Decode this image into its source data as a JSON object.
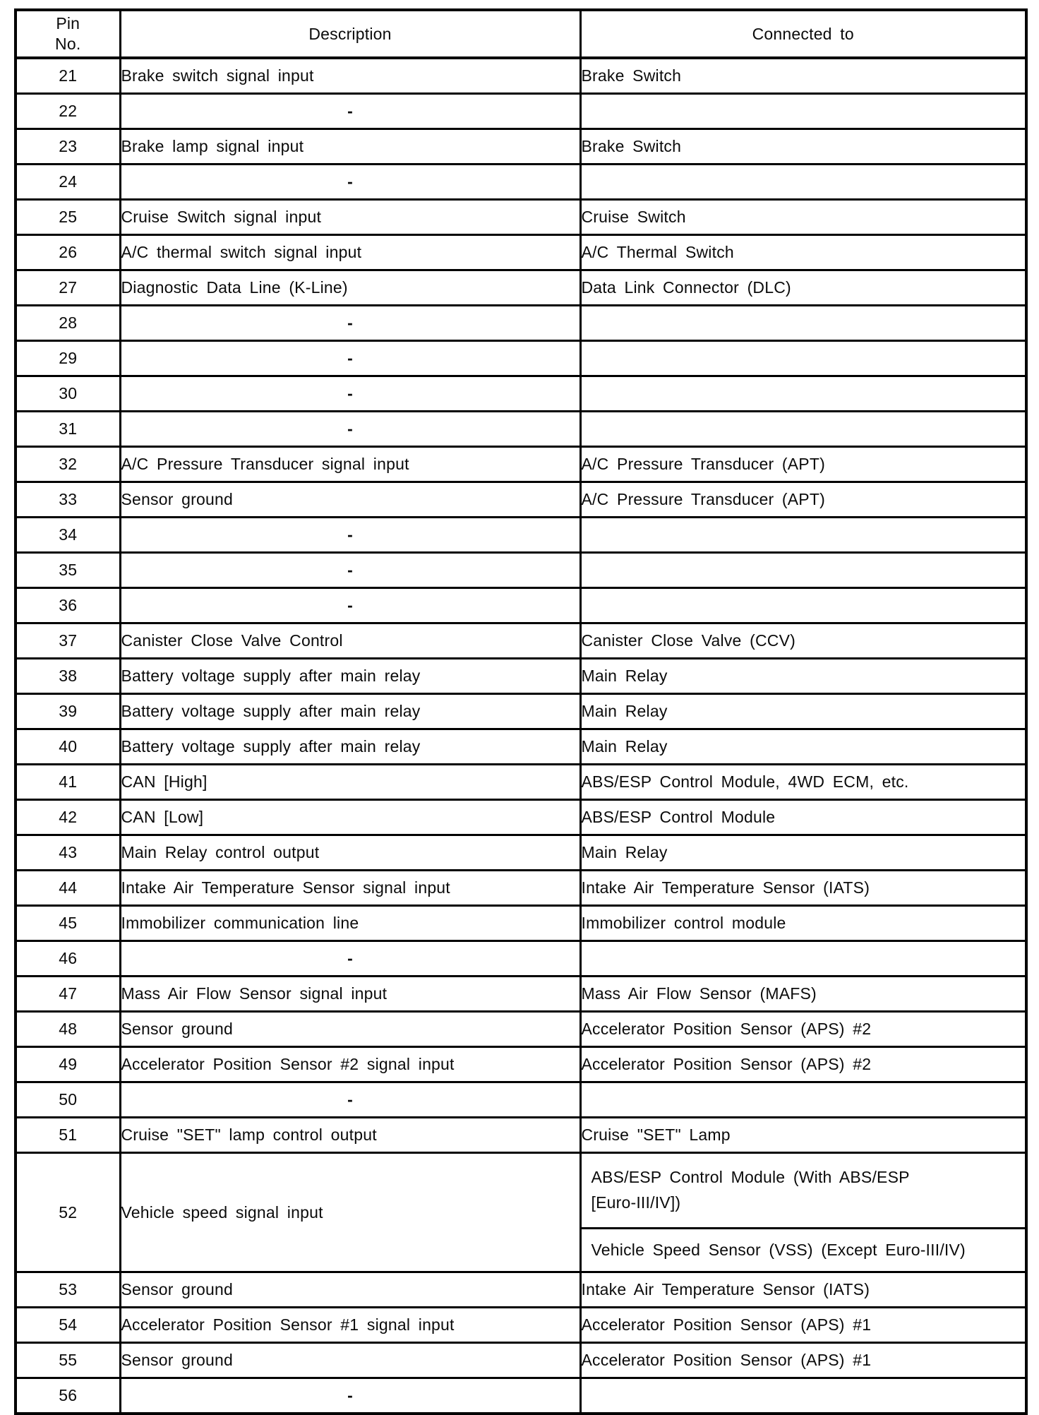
{
  "table": {
    "headers": {
      "pin": "Pin\nNo.",
      "description": "Description",
      "connected_to": "Connected to"
    },
    "rows": [
      {
        "pin": "21",
        "desc": "Brake switch signal input",
        "conn": "Brake Switch"
      },
      {
        "pin": "22",
        "desc": "-",
        "conn": ""
      },
      {
        "pin": "23",
        "desc": "Brake lamp signal input",
        "conn": "Brake Switch"
      },
      {
        "pin": "24",
        "desc": "-",
        "conn": ""
      },
      {
        "pin": "25",
        "desc": "Cruise Switch signal input",
        "conn": "Cruise Switch"
      },
      {
        "pin": "26",
        "desc": "A/C thermal switch signal input",
        "conn": "A/C Thermal Switch"
      },
      {
        "pin": "27",
        "desc": "Diagnostic Data Line (K-Line)",
        "conn": "Data Link Connector (DLC)"
      },
      {
        "pin": "28",
        "desc": "-",
        "conn": ""
      },
      {
        "pin": "29",
        "desc": "-",
        "conn": ""
      },
      {
        "pin": "30",
        "desc": "-",
        "conn": ""
      },
      {
        "pin": "31",
        "desc": "-",
        "conn": ""
      },
      {
        "pin": "32",
        "desc": "A/C Pressure Transducer signal input",
        "conn": "A/C Pressure Transducer (APT)"
      },
      {
        "pin": "33",
        "desc": "Sensor ground",
        "conn": "A/C Pressure Transducer (APT)"
      },
      {
        "pin": "34",
        "desc": "-",
        "conn": ""
      },
      {
        "pin": "35",
        "desc": "-",
        "conn": ""
      },
      {
        "pin": "36",
        "desc": "-",
        "conn": ""
      },
      {
        "pin": "37",
        "desc": "Canister Close Valve Control",
        "conn": "Canister Close Valve (CCV)"
      },
      {
        "pin": "38",
        "desc": "Battery voltage supply after main relay",
        "conn": "Main Relay"
      },
      {
        "pin": "39",
        "desc": "Battery voltage supply after main relay",
        "conn": "Main Relay"
      },
      {
        "pin": "40",
        "desc": "Battery voltage supply after main relay",
        "conn": "Main Relay"
      },
      {
        "pin": "41",
        "desc": "CAN [High]",
        "conn": "ABS/ESP Control Module, 4WD ECM, etc."
      },
      {
        "pin": "42",
        "desc": "CAN [Low]",
        "conn": "ABS/ESP Control Module"
      },
      {
        "pin": "43",
        "desc": "Main Relay control output",
        "conn": "Main Relay"
      },
      {
        "pin": "44",
        "desc": "Intake Air Temperature Sensor signal input",
        "conn": "Intake Air Temperature Sensor (IATS)"
      },
      {
        "pin": "45",
        "desc": "Immobilizer communication line",
        "conn": "Immobilizer control module"
      },
      {
        "pin": "46",
        "desc": "-",
        "conn": ""
      },
      {
        "pin": "47",
        "desc": "Mass Air Flow Sensor signal input",
        "conn": "Mass Air Flow Sensor (MAFS)"
      },
      {
        "pin": "48",
        "desc": "Sensor ground",
        "conn": "Accelerator Position Sensor (APS) #2"
      },
      {
        "pin": "49",
        "desc": "Accelerator Position Sensor #2 signal input",
        "conn": "Accelerator Position Sensor (APS) #2"
      },
      {
        "pin": "50",
        "desc": "-",
        "conn": ""
      },
      {
        "pin": "51",
        "desc": "Cruise \"SET\" lamp control output",
        "conn": "Cruise \"SET\" Lamp"
      },
      {
        "pin": "52",
        "desc": "Vehicle speed signal input",
        "conn": [
          "ABS/ESP Control Module (With ABS/ESP [Euro-III/IV])",
          "Vehicle Speed Sensor (VSS) (Except Euro-III/IV)"
        ]
      },
      {
        "pin": "53",
        "desc": "Sensor ground",
        "conn": "Intake Air Temperature Sensor (IATS)"
      },
      {
        "pin": "54",
        "desc": "Accelerator Position Sensor #1 signal input",
        "conn": "Accelerator Position Sensor (APS) #1"
      },
      {
        "pin": "55",
        "desc": "Sensor ground",
        "conn": "Accelerator Position Sensor (APS) #1"
      },
      {
        "pin": "56",
        "desc": "-",
        "conn": ""
      }
    ]
  }
}
